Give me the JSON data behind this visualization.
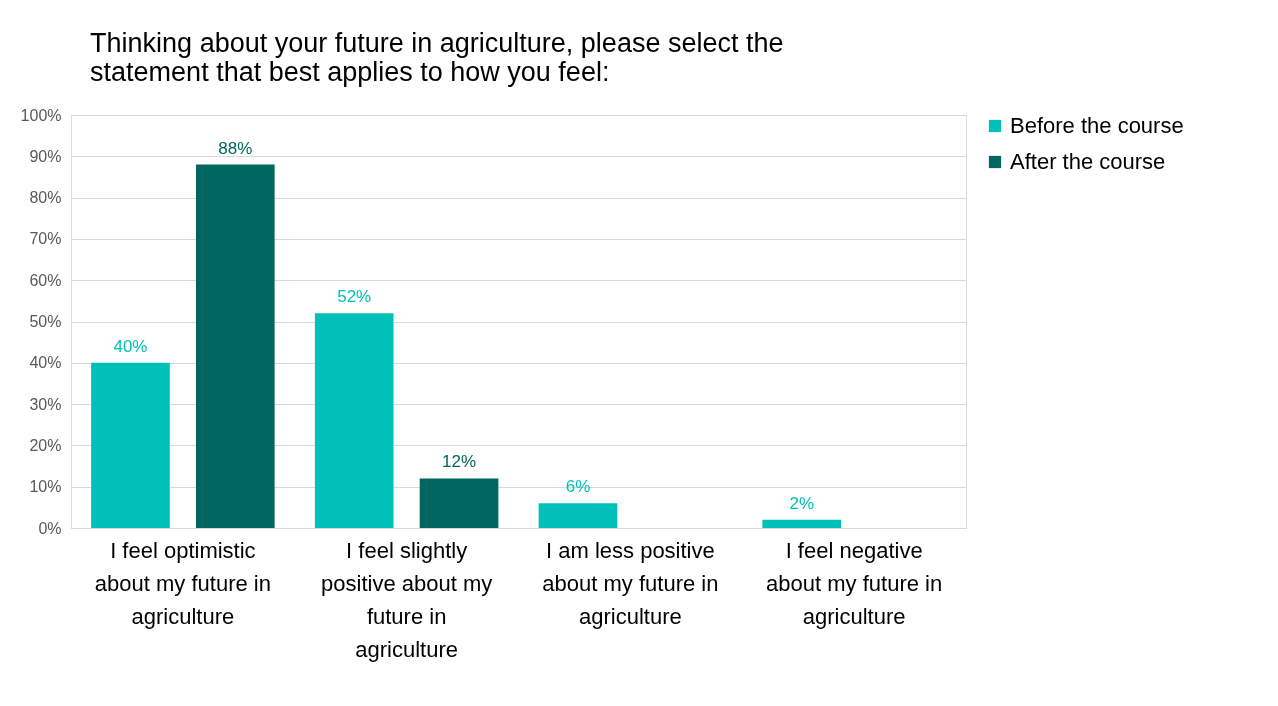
{
  "chart_data": {
    "type": "bar",
    "title": "Thinking about your future in agriculture, please select the statement that best applies to how you feel:",
    "categories": [
      "I feel optimistic about my future in agriculture",
      "I feel slightly positive about my future in agriculture",
      "I am less positive about my future in agriculture",
      "I feel negative about my future in agriculture"
    ],
    "series": [
      {
        "name": "Before the course",
        "color": "#00c0b8",
        "values": [
          40,
          52,
          6,
          2
        ],
        "value_labels": [
          "40%",
          "52%",
          "6%",
          "2%"
        ]
      },
      {
        "name": "After the course",
        "color": "#006660",
        "values": [
          88,
          12,
          null,
          null
        ],
        "value_labels": [
          "88%",
          "12%",
          null,
          null
        ]
      }
    ],
    "ylim": [
      0,
      100
    ],
    "yticks": [
      {
        "value": 0,
        "label": "0%"
      },
      {
        "value": 10,
        "label": "10%"
      },
      {
        "value": 20,
        "label": "20%"
      },
      {
        "value": 30,
        "label": "30%"
      },
      {
        "value": 40,
        "label": "40%"
      },
      {
        "value": 50,
        "label": "50%"
      },
      {
        "value": 60,
        "label": "60%"
      },
      {
        "value": 70,
        "label": "70%"
      },
      {
        "value": 80,
        "label": "80%"
      },
      {
        "value": 90,
        "label": "90%"
      },
      {
        "value": 100,
        "label": "100%"
      }
    ],
    "grid": "y",
    "legend": "right"
  }
}
